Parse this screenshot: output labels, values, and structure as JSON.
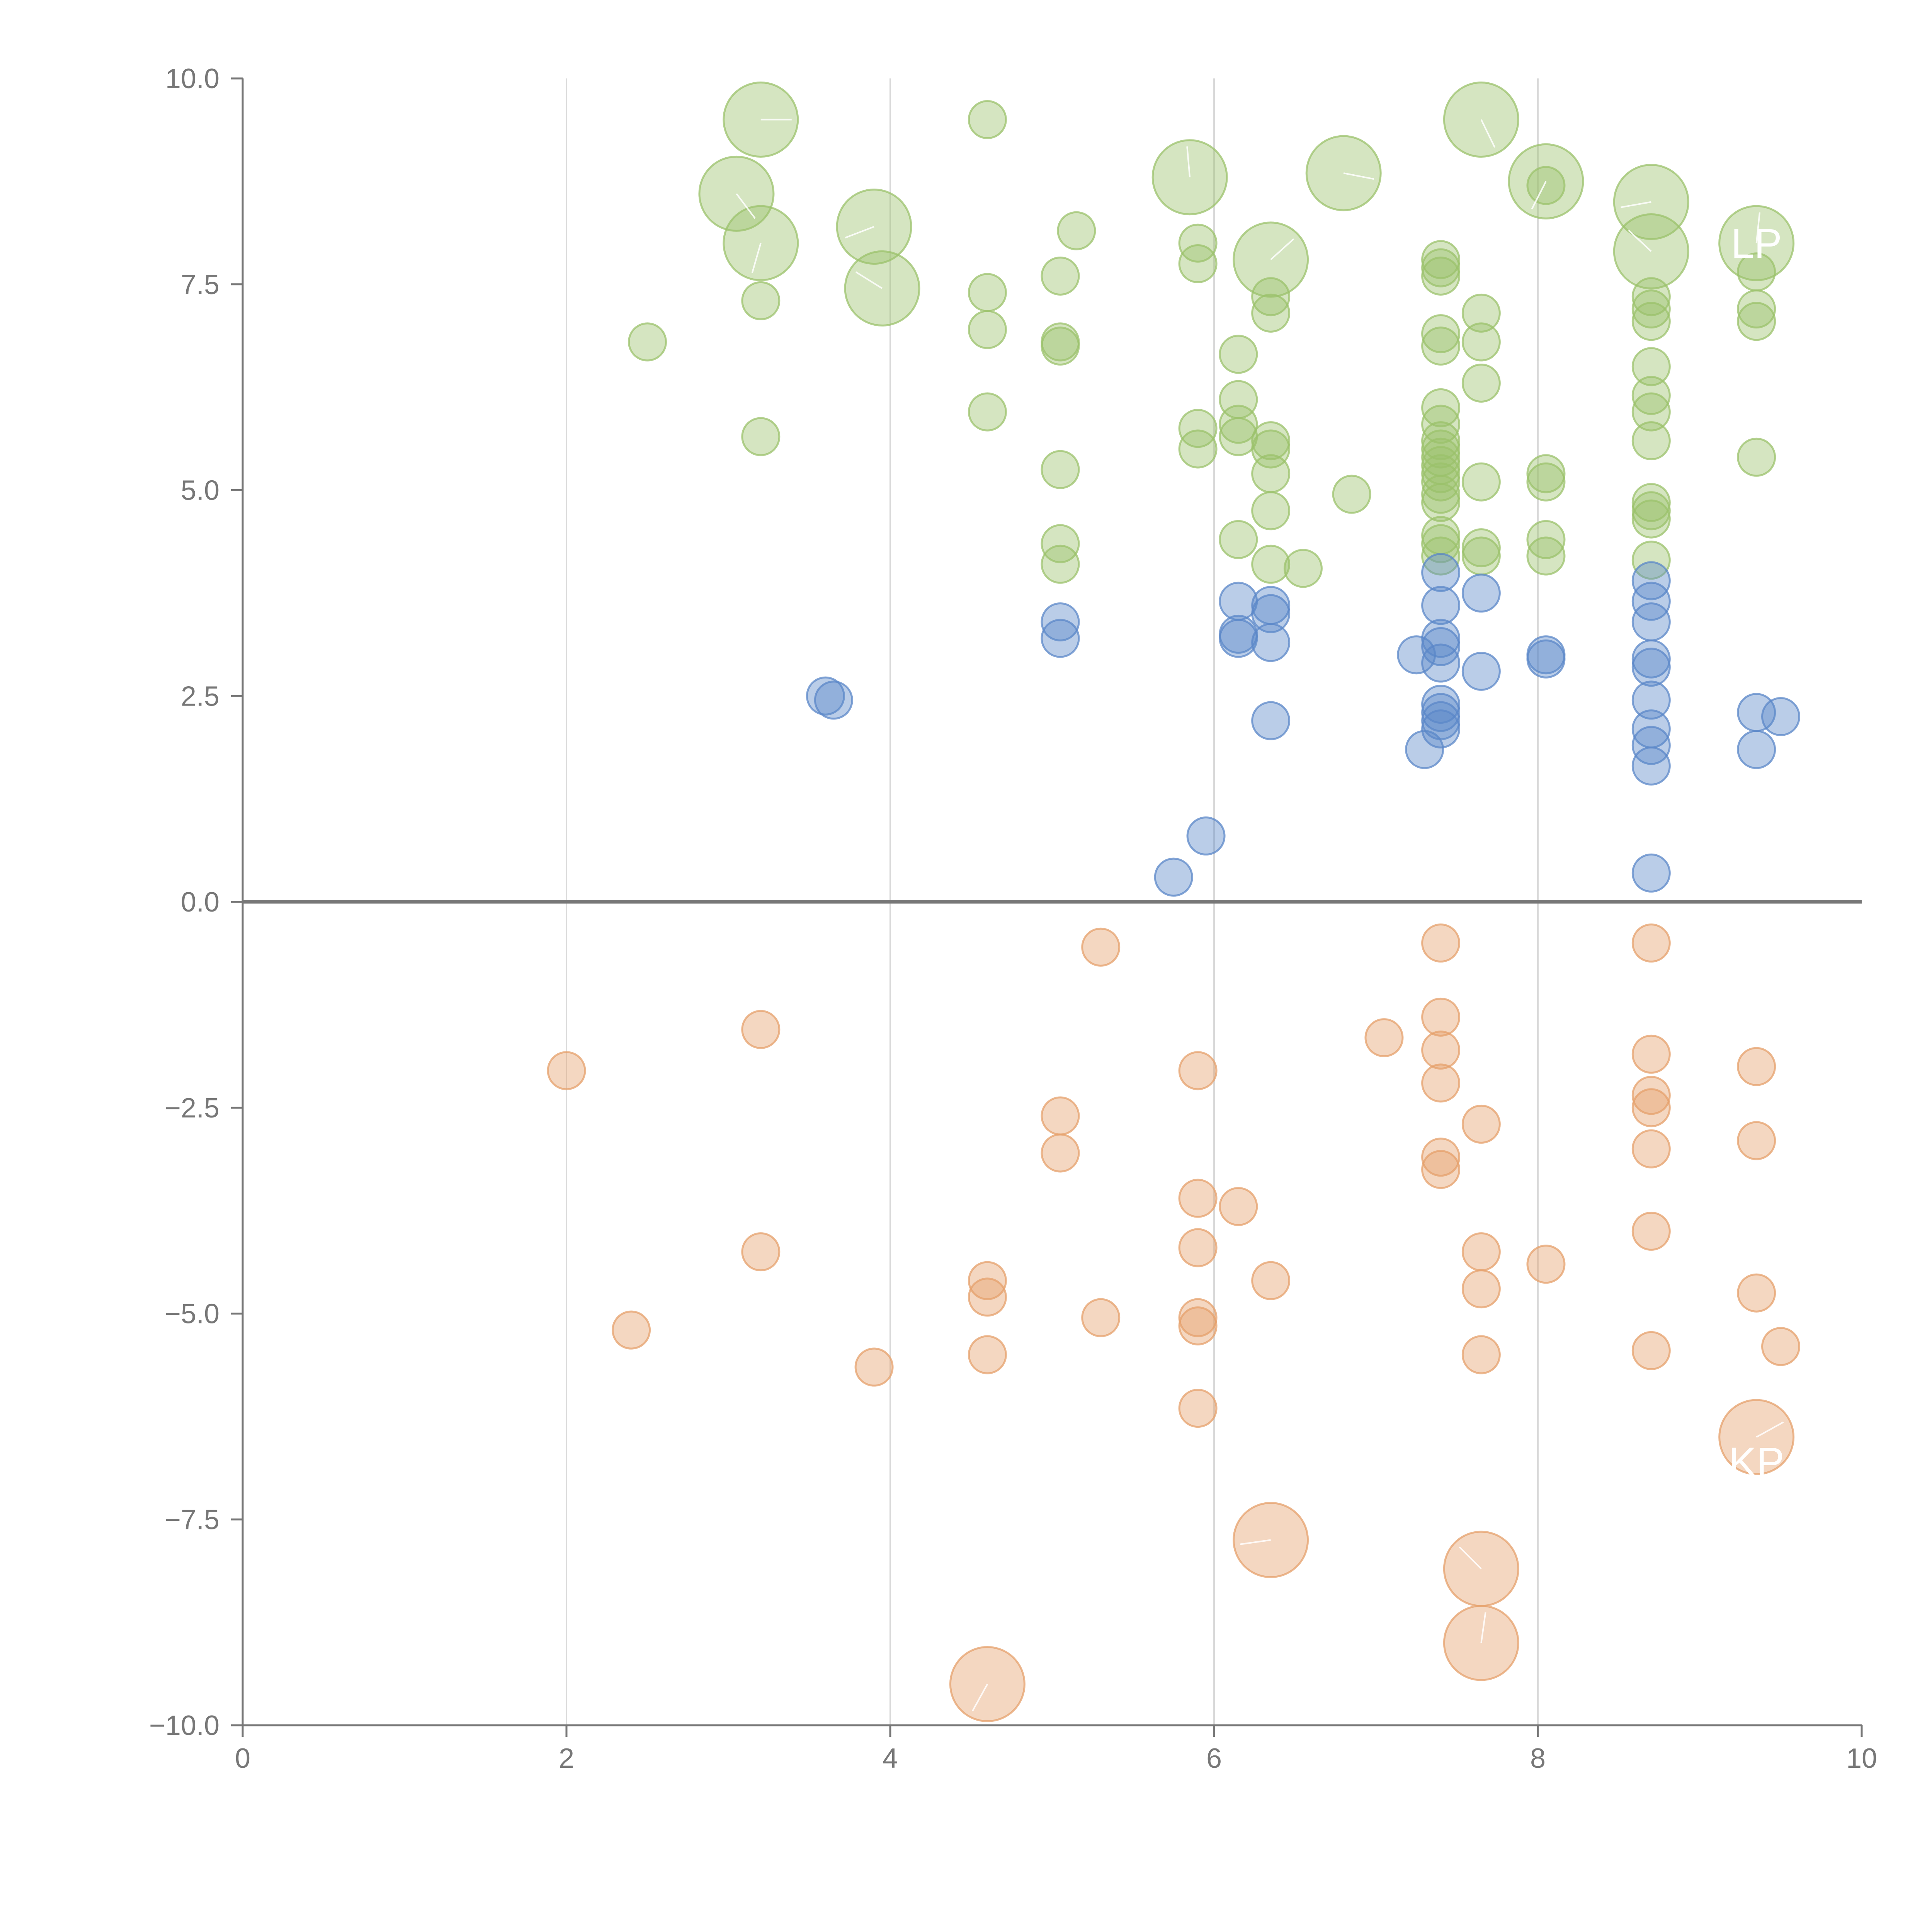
{
  "chart_data": {
    "type": "scatter",
    "title": "",
    "xlabel": "",
    "ylabel": "",
    "xlim": [
      0,
      10
    ],
    "ylim": [
      -10,
      10
    ],
    "x_ticks": [
      0,
      2,
      4,
      6,
      8,
      10
    ],
    "y_ticks": [
      10,
      7.5,
      5,
      2.5,
      0,
      -2.5,
      -5,
      -7.5,
      -10
    ],
    "x_tick_labels": [
      "0",
      "2",
      "4",
      "6",
      "8",
      "10"
    ],
    "y_tick_labels": [
      "10.0",
      "7.5",
      "5.0",
      "2.5",
      "0.0",
      "−2.5",
      "−5.0",
      "−7.5",
      "−10.0"
    ],
    "gridlines": "vertical",
    "zero_line": true,
    "colors": {
      "green": "#9bc26b",
      "blue": "#5b87c8",
      "orange": "#e5a06b",
      "axis": "#777777",
      "grid": "#d9d9d9"
    },
    "series": [
      {
        "name": "green",
        "color": "#9bc26b",
        "points": [
          [
            3.2,
            9.5,
            "L"
          ],
          [
            3.05,
            8.6,
            "L"
          ],
          [
            3.2,
            8.0,
            "L"
          ],
          [
            3.9,
            8.2,
            "L"
          ],
          [
            3.95,
            7.45,
            "L"
          ],
          [
            5.85,
            8.8,
            "L"
          ],
          [
            6.35,
            7.8,
            "L"
          ],
          [
            6.8,
            8.85,
            "L"
          ],
          [
            7.65,
            9.5,
            "L"
          ],
          [
            8.05,
            8.75,
            "L"
          ],
          [
            8.7,
            8.5,
            "L"
          ],
          [
            8.7,
            7.9,
            "L"
          ],
          [
            9.35,
            8.0,
            "L"
          ],
          [
            2.5,
            6.8
          ],
          [
            3.2,
            7.3
          ],
          [
            3.2,
            5.65
          ],
          [
            4.6,
            9.5
          ],
          [
            4.6,
            7.4
          ],
          [
            4.6,
            6.95
          ],
          [
            4.6,
            5.95
          ],
          [
            5.05,
            7.6
          ],
          [
            5.05,
            6.8
          ],
          [
            5.05,
            6.75
          ],
          [
            5.05,
            5.25
          ],
          [
            5.05,
            4.35
          ],
          [
            5.05,
            4.1
          ],
          [
            5.15,
            8.15
          ],
          [
            5.9,
            8.0
          ],
          [
            5.9,
            7.75
          ],
          [
            5.9,
            5.75
          ],
          [
            5.9,
            5.5
          ],
          [
            6.15,
            6.65
          ],
          [
            6.15,
            6.1
          ],
          [
            6.15,
            5.8
          ],
          [
            6.15,
            5.65
          ],
          [
            6.15,
            4.4
          ],
          [
            6.35,
            7.35
          ],
          [
            6.35,
            7.15
          ],
          [
            6.35,
            5.6
          ],
          [
            6.35,
            5.5
          ],
          [
            6.35,
            5.2
          ],
          [
            6.35,
            4.75
          ],
          [
            6.35,
            4.1
          ],
          [
            6.55,
            4.05
          ],
          [
            6.85,
            4.95
          ],
          [
            7.4,
            7.8
          ],
          [
            7.4,
            7.7
          ],
          [
            7.4,
            7.6
          ],
          [
            7.4,
            6.9
          ],
          [
            7.4,
            6.75
          ],
          [
            7.4,
            6.0
          ],
          [
            7.4,
            5.8
          ],
          [
            7.4,
            5.6
          ],
          [
            7.4,
            5.5
          ],
          [
            7.4,
            5.4
          ],
          [
            7.4,
            5.3
          ],
          [
            7.4,
            5.2
          ],
          [
            7.4,
            5.1
          ],
          [
            7.4,
            4.95
          ],
          [
            7.4,
            4.85
          ],
          [
            7.4,
            4.45
          ],
          [
            7.4,
            4.35
          ],
          [
            7.4,
            4.2
          ],
          [
            7.65,
            7.15
          ],
          [
            7.65,
            6.8
          ],
          [
            7.65,
            6.3
          ],
          [
            7.65,
            5.1
          ],
          [
            7.65,
            4.3
          ],
          [
            7.65,
            4.2
          ],
          [
            8.05,
            8.7
          ],
          [
            8.05,
            5.2
          ],
          [
            8.05,
            5.1
          ],
          [
            8.05,
            4.4
          ],
          [
            8.05,
            4.2
          ],
          [
            8.7,
            7.35
          ],
          [
            8.7,
            7.2
          ],
          [
            8.7,
            7.05
          ],
          [
            8.7,
            6.5
          ],
          [
            8.7,
            6.15
          ],
          [
            8.7,
            5.95
          ],
          [
            8.7,
            5.6
          ],
          [
            8.7,
            4.85
          ],
          [
            8.7,
            4.75
          ],
          [
            8.7,
            4.65
          ],
          [
            8.7,
            4.15
          ],
          [
            9.35,
            7.65
          ],
          [
            9.35,
            7.2
          ],
          [
            9.35,
            7.05
          ],
          [
            9.35,
            5.4
          ]
        ]
      },
      {
        "name": "blue",
        "color": "#5b87c8",
        "points": [
          [
            3.6,
            2.5
          ],
          [
            3.65,
            2.45
          ],
          [
            5.05,
            3.4
          ],
          [
            5.05,
            3.2
          ],
          [
            5.75,
            0.3
          ],
          [
            5.95,
            0.8
          ],
          [
            6.15,
            3.65
          ],
          [
            6.15,
            3.25
          ],
          [
            6.15,
            3.2
          ],
          [
            6.35,
            3.6
          ],
          [
            6.35,
            3.5
          ],
          [
            6.35,
            3.15
          ],
          [
            6.35,
            2.2
          ],
          [
            7.25,
            3.0
          ],
          [
            7.3,
            1.85
          ],
          [
            7.4,
            4.0
          ],
          [
            7.4,
            3.6
          ],
          [
            7.4,
            3.2
          ],
          [
            7.4,
            3.1
          ],
          [
            7.4,
            2.9
          ],
          [
            7.4,
            2.4
          ],
          [
            7.4,
            2.3
          ],
          [
            7.4,
            2.2
          ],
          [
            7.4,
            2.1
          ],
          [
            7.65,
            3.75
          ],
          [
            7.65,
            2.8
          ],
          [
            8.05,
            3.0
          ],
          [
            8.05,
            2.95
          ],
          [
            8.7,
            3.9
          ],
          [
            8.7,
            3.65
          ],
          [
            8.7,
            3.4
          ],
          [
            8.7,
            2.95
          ],
          [
            8.7,
            2.85
          ],
          [
            8.7,
            2.45
          ],
          [
            8.7,
            2.1
          ],
          [
            8.7,
            1.9
          ],
          [
            8.7,
            1.65
          ],
          [
            8.7,
            0.35
          ],
          [
            9.35,
            2.3
          ],
          [
            9.35,
            1.85
          ],
          [
            9.5,
            2.25
          ]
        ]
      },
      {
        "name": "orange",
        "color": "#e5a06b",
        "points": [
          [
            2.0,
            -2.05
          ],
          [
            2.4,
            -5.2
          ],
          [
            3.2,
            -1.55
          ],
          [
            3.2,
            -4.25
          ],
          [
            3.9,
            -5.65
          ],
          [
            4.6,
            -4.6
          ],
          [
            4.6,
            -4.8
          ],
          [
            4.6,
            -5.5
          ],
          [
            5.05,
            -2.6
          ],
          [
            5.05,
            -3.05
          ],
          [
            5.3,
            -0.55
          ],
          [
            5.3,
            -5.05
          ],
          [
            5.9,
            -2.05
          ],
          [
            5.9,
            -3.6
          ],
          [
            5.9,
            -4.2
          ],
          [
            5.9,
            -5.05
          ],
          [
            5.9,
            -5.15
          ],
          [
            5.9,
            -6.15
          ],
          [
            6.15,
            -3.7
          ],
          [
            6.35,
            -4.6
          ],
          [
            7.05,
            -1.65
          ],
          [
            7.4,
            -0.5
          ],
          [
            7.4,
            -1.4
          ],
          [
            7.4,
            -1.8
          ],
          [
            7.4,
            -2.2
          ],
          [
            7.4,
            -3.1
          ],
          [
            7.4,
            -3.25
          ],
          [
            7.65,
            -2.7
          ],
          [
            7.65,
            -4.25
          ],
          [
            7.65,
            -4.7
          ],
          [
            7.65,
            -5.5
          ],
          [
            8.05,
            -4.4
          ],
          [
            8.7,
            -0.5
          ],
          [
            8.7,
            -1.85
          ],
          [
            8.7,
            -2.35
          ],
          [
            8.7,
            -2.5
          ],
          [
            8.7,
            -3.0
          ],
          [
            8.7,
            -4.0
          ],
          [
            8.7,
            -5.45
          ],
          [
            9.35,
            -2.0
          ],
          [
            9.35,
            -2.9
          ],
          [
            9.35,
            -4.75
          ],
          [
            9.5,
            -5.4
          ],
          [
            4.6,
            -9.5,
            "L"
          ],
          [
            6.35,
            -7.75,
            "L"
          ],
          [
            7.65,
            -8.1,
            "L"
          ],
          [
            7.65,
            -9.0,
            "L"
          ],
          [
            9.35,
            -6.5,
            "L"
          ]
        ]
      }
    ],
    "annotations": [
      {
        "text": "LP",
        "x": 9.35,
        "y": 8.0
      },
      {
        "text": "KP",
        "x": 9.35,
        "y": -6.8
      }
    ]
  }
}
